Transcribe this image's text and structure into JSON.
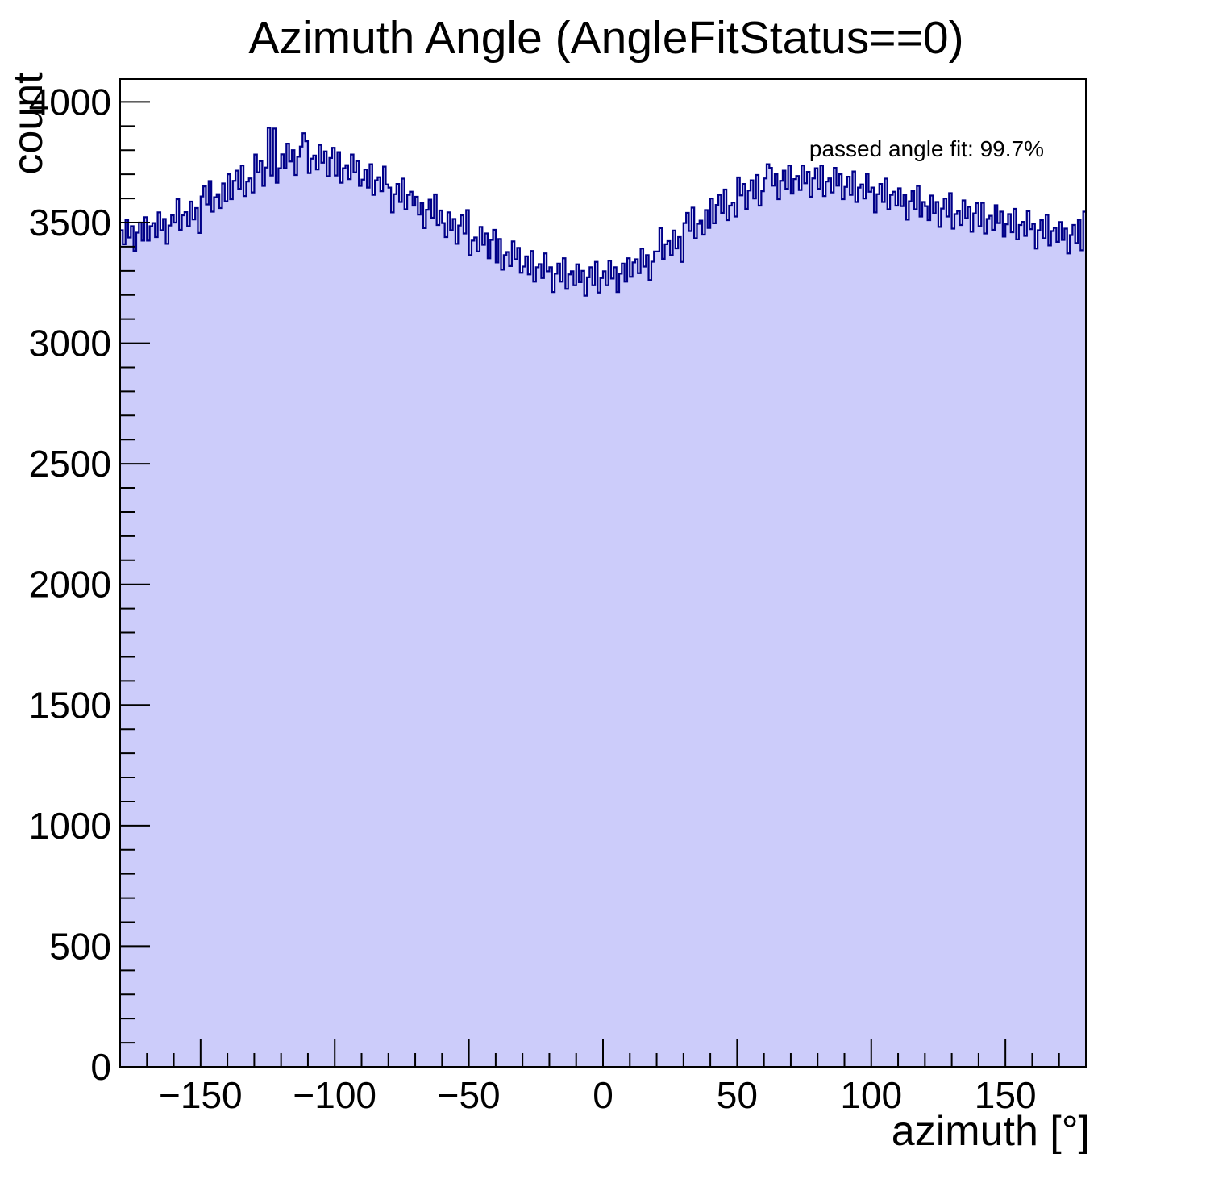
{
  "title": "Azimuth Angle (AngleFitStatus==0)",
  "annotation": "passed angle fit: 99.7%",
  "colors": {
    "histogram_fill": "#ccccfa",
    "histogram_line": "#000088",
    "frame_line": "#000000",
    "background": "#ffffff",
    "text": "#000000"
  },
  "axes": {
    "x": {
      "label": "azimuth [°]",
      "min": -180,
      "max": 180,
      "major_ticks": [
        -150,
        -100,
        -50,
        0,
        50,
        100,
        150
      ],
      "major_tick_labels": [
        "−150",
        "−100",
        "−50",
        "0",
        "50",
        "100",
        "150"
      ],
      "minor_step": 10
    },
    "y": {
      "label": "count",
      "min": 0,
      "max": 4095,
      "major_ticks": [
        0,
        500,
        1000,
        1500,
        2000,
        2500,
        3000,
        3500,
        4000
      ],
      "major_tick_labels": [
        "0",
        "500",
        "1000",
        "1500",
        "2000",
        "2500",
        "3000",
        "3500",
        "4000"
      ],
      "minor_step": 100
    }
  },
  "chart_data": {
    "type": "bar",
    "subtype": "step-histogram",
    "title": "Azimuth Angle (AngleFitStatus==0)",
    "xlabel": "azimuth [°]",
    "ylabel": "count",
    "xlim": [
      -180,
      180
    ],
    "ylim": [
      0,
      4095
    ],
    "grid": false,
    "legend": "none",
    "annotations": [
      {
        "text": "passed angle fit: 99.7%",
        "anchor": "top-right"
      }
    ],
    "bin_start": -180,
    "bin_width": 1,
    "values": [
      3468,
      3410,
      3512,
      3438,
      3485,
      3382,
      3458,
      3500,
      3425,
      3522,
      3425,
      3485,
      3498,
      3440,
      3542,
      3468,
      3515,
      3412,
      3488,
      3530,
      3500,
      3597,
      3470,
      3530,
      3543,
      3485,
      3587,
      3513,
      3560,
      3457,
      3608,
      3650,
      3575,
      3672,
      3545,
      3605,
      3618,
      3560,
      3662,
      3588,
      3700,
      3597,
      3673,
      3715,
      3640,
      3737,
      3610,
      3670,
      3683,
      3625,
      3782,
      3708,
      3755,
      3652,
      3728,
      3893,
      3695,
      3890,
      3665,
      3725,
      3783,
      3725,
      3827,
      3753,
      3800,
      3697,
      3773,
      3815,
      3870,
      3837,
      3705,
      3765,
      3778,
      3720,
      3822,
      3748,
      3795,
      3692,
      3768,
      3810,
      3695,
      3792,
      3665,
      3725,
      3738,
      3680,
      3782,
      3708,
      3755,
      3652,
      3678,
      3720,
      3645,
      3742,
      3615,
      3675,
      3688,
      3630,
      3732,
      3658,
      3645,
      3542,
      3618,
      3660,
      3585,
      3682,
      3555,
      3615,
      3628,
      3570,
      3607,
      3533,
      3580,
      3477,
      3553,
      3595,
      3520,
      3617,
      3490,
      3550,
      3498,
      3440,
      3542,
      3468,
      3515,
      3412,
      3488,
      3530,
      3455,
      3552,
      3365,
      3425,
      3438,
      3380,
      3482,
      3408,
      3455,
      3352,
      3428,
      3470,
      3335,
      3432,
      3305,
      3365,
      3378,
      3320,
      3422,
      3348,
      3395,
      3292,
      3318,
      3360,
      3285,
      3382,
      3255,
      3315,
      3328,
      3270,
      3372,
      3298,
      3315,
      3212,
      3288,
      3330,
      3255,
      3352,
      3225,
      3285,
      3298,
      3240,
      3327,
      3253,
      3300,
      3197,
      3273,
      3315,
      3240,
      3337,
      3210,
      3270,
      3298,
      3240,
      3342,
      3268,
      3315,
      3212,
      3288,
      3330,
      3255,
      3352,
      3275,
      3335,
      3348,
      3290,
      3392,
      3318,
      3365,
      3262,
      3338,
      3380,
      3380,
      3477,
      3350,
      3410,
      3423,
      3365,
      3467,
      3393,
      3440,
      3337,
      3498,
      3540,
      3465,
      3562,
      3435,
      3495,
      3508,
      3450,
      3552,
      3478,
      3600,
      3497,
      3573,
      3615,
      3540,
      3637,
      3510,
      3570,
      3583,
      3525,
      3687,
      3613,
      3660,
      3557,
      3633,
      3675,
      3600,
      3697,
      3570,
      3630,
      3683,
      3742,
      3727,
      3653,
      3700,
      3597,
      3673,
      3715,
      3640,
      3737,
      3620,
      3680,
      3693,
      3635,
      3737,
      3663,
      3710,
      3607,
      3683,
      3725,
      3640,
      3737,
      3610,
      3670,
      3683,
      3625,
      3727,
      3653,
      3700,
      3597,
      3648,
      3690,
      3615,
      3712,
      3585,
      3645,
      3658,
      3600,
      3702,
      3628,
      3645,
      3542,
      3618,
      3660,
      3585,
      3682,
      3555,
      3615,
      3628,
      3570,
      3642,
      3568,
      3615,
      3512,
      3588,
      3630,
      3555,
      3652,
      3525,
      3585,
      3568,
      3510,
      3612,
      3538,
      3585,
      3482,
      3558,
      3600,
      3525,
      3622,
      3475,
      3535,
      3548,
      3490,
      3592,
      3518,
      3565,
      3462,
      3538,
      3580,
      3485,
      3582,
      3455,
      3515,
      3528,
      3470,
      3572,
      3498,
      3545,
      3442,
      3493,
      3535,
      3460,
      3557,
      3430,
      3490,
      3503,
      3445,
      3547,
      3473,
      3495,
      3392,
      3468,
      3510,
      3435,
      3532,
      3405,
      3465,
      3478,
      3420,
      3502,
      3428,
      3475,
      3372,
      3448,
      3490,
      3415,
      3512,
      3385,
      3545
    ]
  }
}
